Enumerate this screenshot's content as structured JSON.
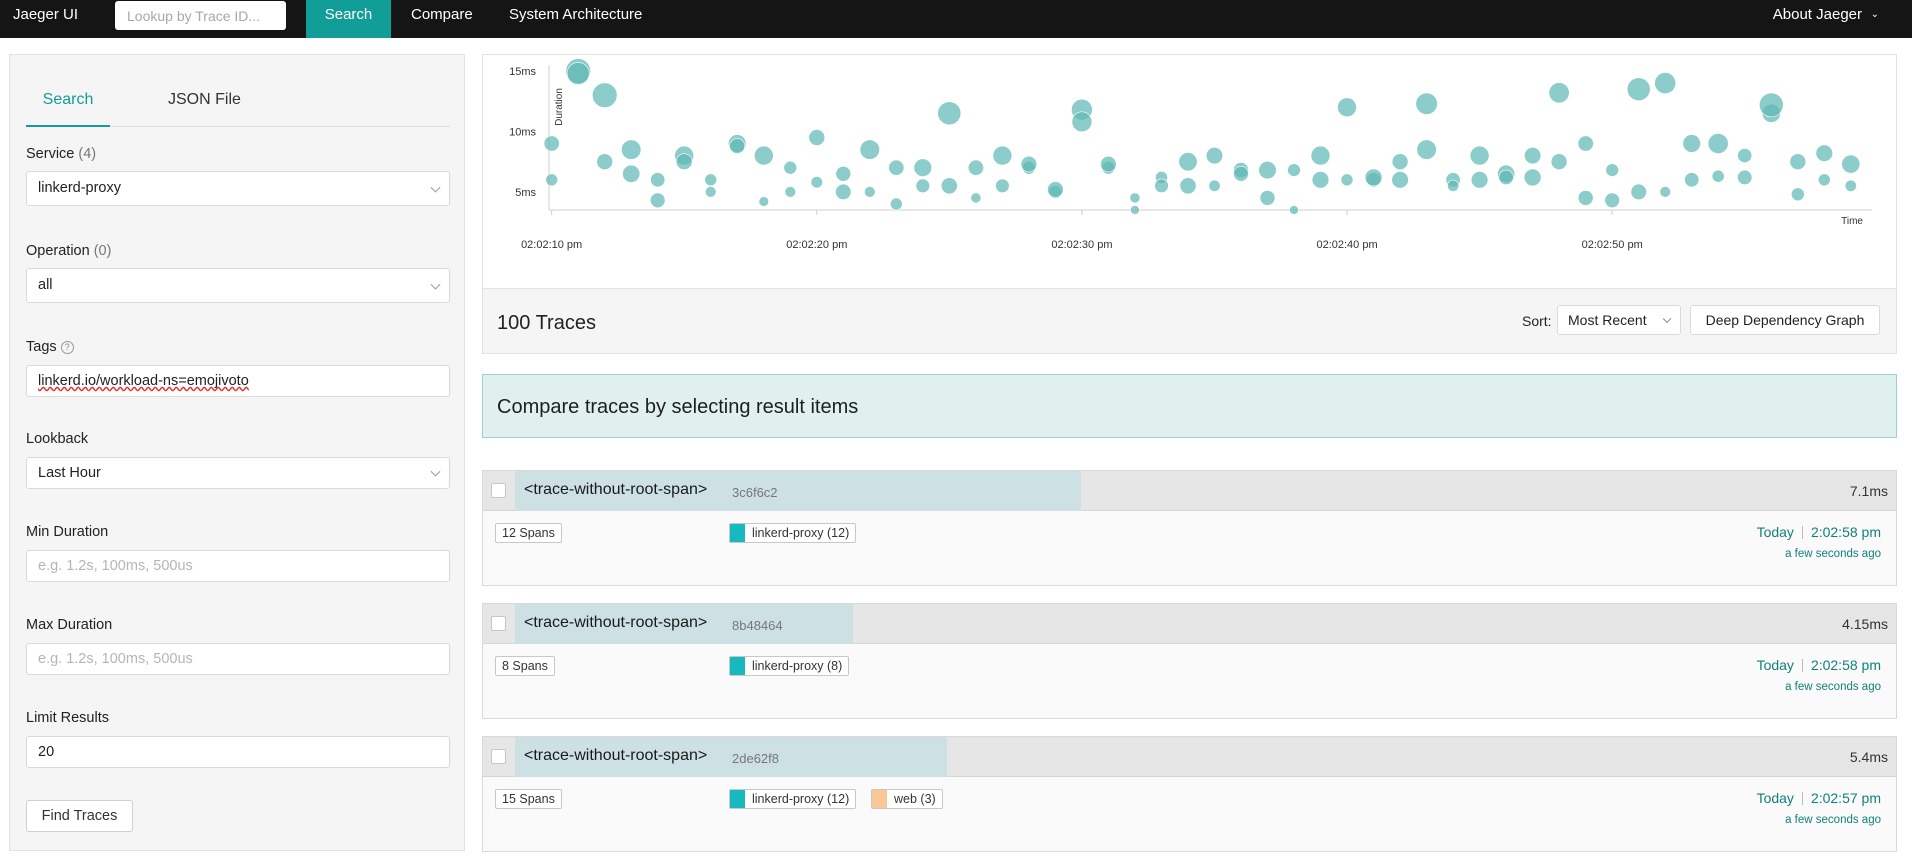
{
  "nav": {
    "brand": "Jaeger UI",
    "lookup_placeholder": "Lookup by Trace ID...",
    "items": [
      "Search",
      "Compare",
      "System Architecture"
    ],
    "about": "About Jaeger",
    "about_icon": "chevron-down-icon"
  },
  "sidebar": {
    "tabs": [
      "Search",
      "JSON File"
    ],
    "service": {
      "label": "Service",
      "count": "(4)",
      "value": "linkerd-proxy"
    },
    "operation": {
      "label": "Operation",
      "count": "(0)",
      "value": "all"
    },
    "tags": {
      "label": "Tags",
      "help_icon": "question-circle-icon",
      "value": "linkerd.io/workload-ns=emojivoto"
    },
    "lookback": {
      "label": "Lookback",
      "value": "Last Hour"
    },
    "min_duration": {
      "label": "Min Duration",
      "placeholder": "e.g. 1.2s, 100ms, 500us"
    },
    "max_duration": {
      "label": "Max Duration",
      "placeholder": "e.g. 1.2s, 100ms, 500us"
    },
    "limit": {
      "label": "Limit Results",
      "value": "20"
    },
    "find_button": "Find Traces"
  },
  "chart_data": {
    "type": "scatter",
    "xlabel": "Time",
    "ylabel": "Duration",
    "x_ticks": [
      "02:02:10 pm",
      "02:02:20 pm",
      "02:02:30 pm",
      "02:02:40 pm",
      "02:02:50 pm"
    ],
    "y_ticks": [
      "5ms",
      "10ms",
      "15ms"
    ],
    "xlim_seconds": [
      -0.1,
      49.8
    ],
    "ylim_ms": [
      3.5,
      15.5
    ],
    "grid": false,
    "color": "#60b9b5",
    "points": [
      [
        0,
        9
      ],
      [
        0,
        6
      ],
      [
        1,
        15
      ],
      [
        1,
        14.8
      ],
      [
        2,
        13
      ],
      [
        2,
        7.5
      ],
      [
        3,
        8.5
      ],
      [
        3,
        6.5
      ],
      [
        4,
        6
      ],
      [
        4,
        4.3
      ],
      [
        5,
        8
      ],
      [
        5,
        7.5
      ],
      [
        6,
        5
      ],
      [
        6,
        6
      ],
      [
        7,
        9
      ],
      [
        7,
        8.8
      ],
      [
        8,
        8
      ],
      [
        8,
        4.2
      ],
      [
        9,
        7
      ],
      [
        9,
        5
      ],
      [
        10,
        9.5
      ],
      [
        10,
        5.8
      ],
      [
        11,
        6.5
      ],
      [
        11,
        5
      ],
      [
        12,
        8.5
      ],
      [
        12,
        5
      ],
      [
        13,
        7
      ],
      [
        13,
        4
      ],
      [
        14,
        7
      ],
      [
        14,
        5.5
      ],
      [
        15,
        11.5
      ],
      [
        15,
        5.5
      ],
      [
        16,
        7
      ],
      [
        16,
        4.5
      ],
      [
        17,
        8
      ],
      [
        17,
        5.5
      ],
      [
        18,
        7
      ],
      [
        18,
        7.3
      ],
      [
        19,
        5
      ],
      [
        19,
        5.2
      ],
      [
        20,
        11.8
      ],
      [
        20,
        10.8
      ],
      [
        21,
        7
      ],
      [
        21,
        7.3
      ],
      [
        22,
        4.5
      ],
      [
        22,
        3.5
      ],
      [
        23,
        6.2
      ],
      [
        23,
        5.5
      ],
      [
        24,
        7.5
      ],
      [
        24,
        5.5
      ],
      [
        25,
        8
      ],
      [
        25,
        5.5
      ],
      [
        26,
        6.8
      ],
      [
        26,
        6.5
      ],
      [
        27,
        6.8
      ],
      [
        27,
        4.5
      ],
      [
        28,
        6.8
      ],
      [
        28,
        3.5
      ],
      [
        29,
        8
      ],
      [
        29,
        6
      ],
      [
        30,
        12
      ],
      [
        30,
        6
      ],
      [
        31,
        6
      ],
      [
        31,
        6.2
      ],
      [
        32,
        7.5
      ],
      [
        32,
        6
      ],
      [
        33,
        12.3
      ],
      [
        33,
        8.5
      ],
      [
        34,
        6
      ],
      [
        34,
        5.5
      ],
      [
        35,
        8
      ],
      [
        35,
        6
      ],
      [
        36,
        6.5
      ],
      [
        36,
        6.2
      ],
      [
        37,
        8
      ],
      [
        37,
        6.2
      ],
      [
        38,
        13.2
      ],
      [
        38,
        7.5
      ],
      [
        39,
        9
      ],
      [
        39,
        4.5
      ],
      [
        40,
        6.8
      ],
      [
        40,
        4.3
      ],
      [
        41,
        5
      ],
      [
        41,
        13.5
      ],
      [
        42,
        14
      ],
      [
        42,
        5
      ],
      [
        43,
        9
      ],
      [
        43,
        6
      ],
      [
        44,
        6.3
      ],
      [
        44,
        9
      ],
      [
        45,
        8
      ],
      [
        45,
        6.2
      ],
      [
        46,
        11.5
      ],
      [
        46,
        12.2
      ],
      [
        47,
        7.5
      ],
      [
        47,
        4.8
      ],
      [
        48,
        8.2
      ],
      [
        48,
        6
      ],
      [
        49,
        5.5
      ],
      [
        49,
        7.3
      ]
    ]
  },
  "results": {
    "count_text": "100 Traces",
    "sort_label": "Sort:",
    "sort_value": "Most Recent",
    "ddg_button": "Deep Dependency Graph"
  },
  "compare_banner": "Compare traces by selecting result items",
  "traces": [
    {
      "name": "<trace-without-root-span>",
      "id": "3c6f6c2",
      "duration": "7.1ms",
      "duration_fraction": 0.41,
      "spans": "12 Spans",
      "services": [
        {
          "name": "linkerd-proxy (12)",
          "color": "#17b8be"
        }
      ],
      "day": "Today",
      "time": "2:02:58 pm",
      "ago": "a few seconds ago"
    },
    {
      "name": "<trace-without-root-span>",
      "id": "8b48464",
      "duration": "4.15ms",
      "duration_fraction": 0.245,
      "spans": "8 Spans",
      "services": [
        {
          "name": "linkerd-proxy (8)",
          "color": "#17b8be"
        }
      ],
      "day": "Today",
      "time": "2:02:58 pm",
      "ago": "a few seconds ago"
    },
    {
      "name": "<trace-without-root-span>",
      "id": "2de62f8",
      "duration": "5.4ms",
      "duration_fraction": 0.313,
      "spans": "15 Spans",
      "services": [
        {
          "name": "linkerd-proxy (12)",
          "color": "#17b8be"
        },
        {
          "name": "web (3)",
          "color": "#f8c896"
        }
      ],
      "day": "Today",
      "time": "2:02:57 pm",
      "ago": "a few seconds ago"
    }
  ]
}
